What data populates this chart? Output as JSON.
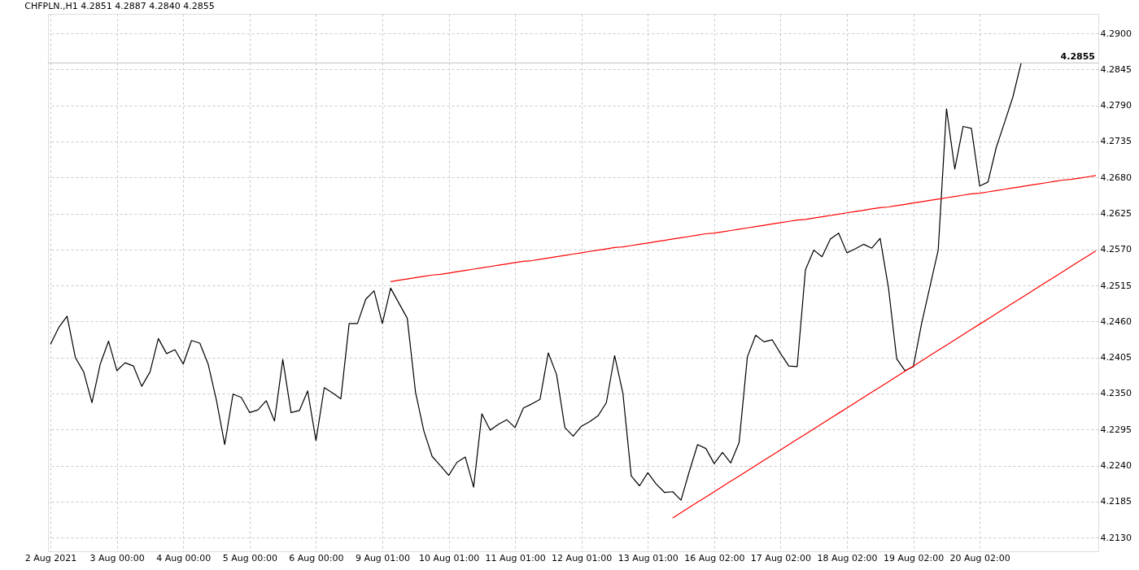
{
  "chart_data": {
    "type": "line",
    "title": "CHFPLN.,H1  4.2851 4.2887 4.2840 4.2855",
    "categories": [
      "2 Aug 2021",
      null,
      null,
      null,
      null,
      null,
      null,
      null,
      "3 Aug 00:00",
      null,
      null,
      null,
      null,
      null,
      null,
      null,
      "4 Aug 00:00",
      null,
      null,
      null,
      null,
      null,
      null,
      null,
      "5 Aug 00:00",
      null,
      null,
      null,
      null,
      null,
      null,
      null,
      "6 Aug 00:00",
      null,
      null,
      null,
      null,
      null,
      null,
      null,
      "9 Aug 01:00",
      null,
      null,
      null,
      null,
      null,
      null,
      null,
      "10 Aug 01:00",
      null,
      null,
      null,
      null,
      null,
      null,
      null,
      "11 Aug 01:00",
      null,
      null,
      null,
      null,
      null,
      null,
      null,
      "12 Aug 01:00",
      null,
      null,
      null,
      null,
      null,
      null,
      null,
      "13 Aug 01:00",
      null,
      null,
      null,
      null,
      null,
      null,
      null,
      "16 Aug 02:00",
      null,
      null,
      null,
      null,
      null,
      null,
      null,
      "17 Aug 02:00",
      null,
      null,
      null,
      null,
      null,
      null,
      null,
      "18 Aug 02:00",
      null,
      null,
      null,
      null,
      null,
      null,
      null,
      "19 Aug 02:00",
      null,
      null,
      null,
      null,
      null,
      null,
      null,
      "20 Aug 02:00",
      null,
      null,
      null,
      null,
      null,
      null,
      null,
      null,
      null,
      null,
      null,
      null,
      null,
      null
    ],
    "ylim": [
      4.2109,
      4.293
    ],
    "yticks": [
      {
        "value": 4.213,
        "label": "4.2130"
      },
      {
        "value": 4.2185,
        "label": "4.2185"
      },
      {
        "value": 4.224,
        "label": "4.2240"
      },
      {
        "value": 4.2295,
        "label": "4.2295"
      },
      {
        "value": 4.235,
        "label": "4.2350"
      },
      {
        "value": 4.2405,
        "label": "4.2405"
      },
      {
        "value": 4.246,
        "label": "4.2460"
      },
      {
        "value": 4.2515,
        "label": "4.2515"
      },
      {
        "value": 4.257,
        "label": "4.2570"
      },
      {
        "value": 4.2625,
        "label": "4.2625"
      },
      {
        "value": 4.268,
        "label": "4.2680"
      },
      {
        "value": 4.2735,
        "label": "4.2735"
      },
      {
        "value": 4.279,
        "label": "4.2790"
      },
      {
        "value": 4.2845,
        "label": "4.2845"
      },
      {
        "value": 4.29,
        "label": "4.2900"
      }
    ],
    "grid": true,
    "line_style": "solid",
    "ref_lines": [
      {
        "axis": "y",
        "value": 4.2855,
        "label": "4.2855",
        "color": "#c0c0c0"
      }
    ],
    "series": [
      {
        "color": "#000000",
        "values": [
          4.2425,
          4.2451,
          4.2468,
          4.2405,
          4.2383,
          4.2336,
          4.2395,
          4.243,
          4.2385,
          4.2397,
          4.2392,
          4.2361,
          4.2383,
          4.2434,
          4.2411,
          4.2417,
          4.2395,
          4.2431,
          4.2427,
          4.2395,
          4.234,
          4.2272,
          4.2349,
          4.2344,
          4.2321,
          4.2325,
          4.2339,
          4.2308,
          4.2402,
          4.2321,
          4.2324,
          4.2354,
          4.2278,
          4.2359,
          4.2351,
          4.2342,
          4.2457,
          4.2457,
          4.2494,
          4.2507,
          4.2457,
          4.2511,
          4.2488,
          4.2465,
          4.2352,
          4.2293,
          4.2254,
          4.224,
          4.2225,
          4.2245,
          4.2253,
          4.2207,
          4.2319,
          4.2294,
          4.2303,
          4.231,
          4.2298,
          4.2328,
          4.2334,
          4.2341,
          4.2412,
          4.2379,
          4.2298,
          4.2285,
          4.23,
          4.2307,
          4.2316,
          4.2336,
          4.2408,
          4.235,
          4.2224,
          4.2209,
          4.2229,
          4.2212,
          4.2199,
          4.22,
          4.2187,
          4.2231,
          4.2272,
          4.2266,
          4.2243,
          4.226,
          4.2244,
          4.2275,
          4.2406,
          4.2439,
          4.2429,
          4.2432,
          4.2411,
          4.2392,
          4.2391,
          4.2539,
          4.2569,
          4.2559,
          4.2586,
          4.2595,
          4.2565,
          4.2571,
          4.2578,
          4.2572,
          4.2587,
          4.2512,
          4.2403,
          4.2385,
          4.2391,
          4.2457,
          4.2513,
          4.2569,
          4.2785,
          4.2693,
          4.2758,
          4.2755,
          4.2667,
          4.2673,
          4.2726,
          4.2764,
          4.2803,
          4.2855,
          null,
          null,
          null,
          null,
          null,
          null,
          null,
          null,
          null
        ]
      },
      {
        "type": "line",
        "color": "#ff0000",
        "values": [
          null,
          null,
          null,
          null,
          null,
          null,
          null,
          null,
          null,
          null,
          null,
          null,
          null,
          null,
          null,
          null,
          null,
          null,
          null,
          null,
          null,
          null,
          null,
          null,
          null,
          null,
          null,
          null,
          null,
          null,
          null,
          null,
          null,
          null,
          null,
          null,
          null,
          null,
          null,
          null,
          null,
          4.2521,
          4.2523,
          4.2525,
          4.2527,
          4.2529,
          4.2531,
          4.2532,
          4.2534,
          4.2536,
          4.2538,
          4.254,
          4.2542,
          4.2544,
          4.2546,
          4.2548,
          4.255,
          4.2552,
          4.2553,
          4.2555,
          4.2557,
          4.2559,
          4.2561,
          4.2563,
          4.2565,
          4.2567,
          4.2569,
          4.2571,
          4.2573,
          4.2574,
          4.2576,
          4.2578,
          4.258,
          4.2582,
          4.2584,
          4.2586,
          4.2588,
          4.259,
          4.2592,
          4.2594,
          4.2595,
          4.2597,
          4.2599,
          4.2601,
          4.2603,
          4.2605,
          4.2607,
          4.2609,
          4.2611,
          4.2613,
          4.2615,
          4.2616,
          4.2618,
          4.262,
          4.2622,
          4.2624,
          4.2626,
          4.2628,
          4.263,
          4.2632,
          4.2634,
          4.2635,
          4.2637,
          4.2639,
          4.2641,
          4.2643,
          4.2645,
          4.2647,
          4.2649,
          4.2651,
          4.2653,
          4.2655,
          4.2656,
          4.2658,
          4.266,
          4.2662,
          4.2664,
          4.2666,
          4.2668,
          4.267,
          4.2672,
          4.2674,
          4.2676,
          4.2677,
          4.2679,
          4.2681,
          4.2683
        ]
      },
      {
        "type": "line",
        "color": "#ff0000",
        "values": [
          null,
          null,
          null,
          null,
          null,
          null,
          null,
          null,
          null,
          null,
          null,
          null,
          null,
          null,
          null,
          null,
          null,
          null,
          null,
          null,
          null,
          null,
          null,
          null,
          null,
          null,
          null,
          null,
          null,
          null,
          null,
          null,
          null,
          null,
          null,
          null,
          null,
          null,
          null,
          null,
          null,
          null,
          null,
          null,
          null,
          null,
          null,
          null,
          null,
          null,
          null,
          null,
          null,
          null,
          null,
          null,
          null,
          null,
          null,
          null,
          null,
          null,
          null,
          null,
          null,
          null,
          null,
          null,
          null,
          null,
          null,
          null,
          null,
          null,
          null,
          4.216,
          4.2168,
          4.2176,
          4.2184,
          4.2192,
          4.22,
          4.2208,
          4.2216,
          4.2224,
          4.2232,
          4.224,
          4.2248,
          4.2256,
          4.2264,
          4.2272,
          4.228,
          4.2288,
          4.2296,
          4.2304,
          4.2312,
          4.232,
          4.2328,
          4.2336,
          4.2344,
          4.2352,
          4.236,
          4.2368,
          4.2376,
          4.2384,
          4.2392,
          4.24,
          4.2408,
          4.2416,
          4.2424,
          4.2432,
          4.244,
          4.2448,
          4.2456,
          4.2464,
          4.2472,
          4.248,
          4.2488,
          4.2496,
          4.2504,
          4.2512,
          4.252,
          4.2528,
          4.2536,
          4.2544,
          4.2552,
          4.256,
          4.2568
        ]
      }
    ]
  }
}
